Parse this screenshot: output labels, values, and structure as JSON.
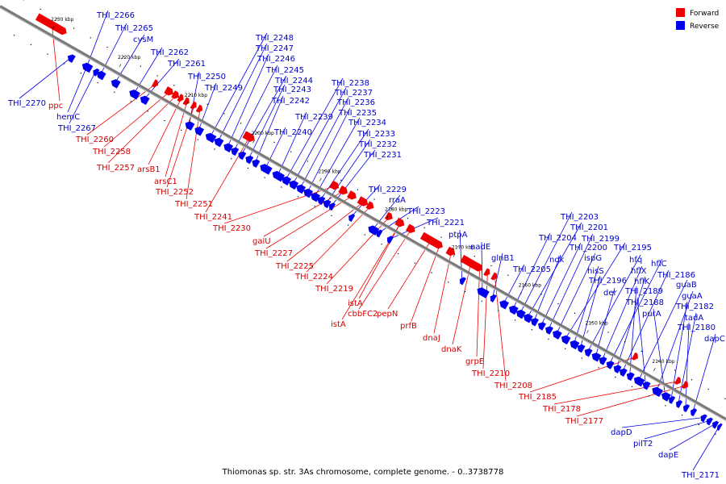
{
  "caption": "Thiomonas sp. str. 3As chromosome, complete genome. - 0..3738778",
  "legend": {
    "forward_label": "Forward",
    "reverse_label": "Reverse",
    "forward_color": "#ee0000",
    "reverse_color": "#0000ee"
  },
  "axis": {
    "ticks": [
      "2230 kbp",
      "2220 kbp",
      "2210 kbp",
      "2200 kbp",
      "2190 kbp",
      "2180 kbp",
      "2170 kbp",
      "2160 kbp",
      "2150 kbp",
      "2140 kbp"
    ]
  },
  "genes": [
    {
      "name": "THI_2266",
      "strand": "reverse"
    },
    {
      "name": "THI_2265",
      "strand": "reverse"
    },
    {
      "name": "cysM",
      "strand": "reverse"
    },
    {
      "name": "THI_2262",
      "strand": "reverse"
    },
    {
      "name": "THI_2261",
      "strand": "reverse"
    },
    {
      "name": "THI_2250",
      "strand": "reverse"
    },
    {
      "name": "THI_2249",
      "strand": "reverse"
    },
    {
      "name": "THI_2248",
      "strand": "reverse"
    },
    {
      "name": "THI_2247",
      "strand": "reverse"
    },
    {
      "name": "THI_2246",
      "strand": "reverse"
    },
    {
      "name": "THI_2245",
      "strand": "reverse"
    },
    {
      "name": "THI_2244",
      "strand": "reverse"
    },
    {
      "name": "THI_2243",
      "strand": "reverse"
    },
    {
      "name": "THI_2242",
      "strand": "reverse"
    },
    {
      "name": "THI_2238",
      "strand": "reverse"
    },
    {
      "name": "THI_2237",
      "strand": "reverse"
    },
    {
      "name": "THI_2236",
      "strand": "reverse"
    },
    {
      "name": "THI_2235",
      "strand": "reverse"
    },
    {
      "name": "THI_2239",
      "strand": "reverse"
    },
    {
      "name": "THI_2234",
      "strand": "reverse"
    },
    {
      "name": "THI_2240",
      "strand": "reverse"
    },
    {
      "name": "THI_2233",
      "strand": "reverse"
    },
    {
      "name": "THI_2232",
      "strand": "reverse"
    },
    {
      "name": "THI_2231",
      "strand": "reverse"
    },
    {
      "name": "THI_2229",
      "strand": "reverse"
    },
    {
      "name": "rraA",
      "strand": "reverse"
    },
    {
      "name": "THI_2223",
      "strand": "reverse"
    },
    {
      "name": "THI_2221",
      "strand": "reverse"
    },
    {
      "name": "ptpA",
      "strand": "reverse"
    },
    {
      "name": "nadE",
      "strand": "reverse"
    },
    {
      "name": "glnB1",
      "strand": "reverse"
    },
    {
      "name": "THI_2205",
      "strand": "reverse"
    },
    {
      "name": "THI_2204",
      "strand": "reverse"
    },
    {
      "name": "THI_2203",
      "strand": "reverse"
    },
    {
      "name": "THI_2201",
      "strand": "reverse"
    },
    {
      "name": "ndk",
      "strand": "reverse"
    },
    {
      "name": "THI_2200",
      "strand": "reverse"
    },
    {
      "name": "THI_2199",
      "strand": "reverse"
    },
    {
      "name": "ispG",
      "strand": "reverse"
    },
    {
      "name": "THI_2195",
      "strand": "reverse"
    },
    {
      "name": "hisS",
      "strand": "reverse"
    },
    {
      "name": "THI_2196",
      "strand": "reverse"
    },
    {
      "name": "hfq",
      "strand": "reverse"
    },
    {
      "name": "der",
      "strand": "reverse"
    },
    {
      "name": "hflX",
      "strand": "reverse"
    },
    {
      "name": "hflC",
      "strand": "reverse"
    },
    {
      "name": "hflK",
      "strand": "reverse"
    },
    {
      "name": "THI_2186",
      "strand": "reverse"
    },
    {
      "name": "THI_2189",
      "strand": "reverse"
    },
    {
      "name": "guaB",
      "strand": "reverse"
    },
    {
      "name": "THI_2188",
      "strand": "reverse"
    },
    {
      "name": "guaA",
      "strand": "reverse"
    },
    {
      "name": "purA",
      "strand": "reverse"
    },
    {
      "name": "THI_2182",
      "strand": "reverse"
    },
    {
      "name": "tadA",
      "strand": "reverse"
    },
    {
      "name": "THI_2180",
      "strand": "reverse"
    },
    {
      "name": "dapC",
      "strand": "reverse"
    },
    {
      "name": "THI_2270",
      "strand": "reverse"
    },
    {
      "name": "hemC",
      "strand": "reverse"
    },
    {
      "name": "THI_2267",
      "strand": "reverse"
    },
    {
      "name": "dapD",
      "strand": "reverse"
    },
    {
      "name": "pilT2",
      "strand": "reverse"
    },
    {
      "name": "dapE",
      "strand": "reverse"
    },
    {
      "name": "THI_2171",
      "strand": "reverse"
    },
    {
      "name": "ppc",
      "strand": "forward"
    },
    {
      "name": "THI_2260",
      "strand": "forward"
    },
    {
      "name": "THI_2258",
      "strand": "forward"
    },
    {
      "name": "THI_2257",
      "strand": "forward"
    },
    {
      "name": "arsB1",
      "strand": "forward"
    },
    {
      "name": "arsC1",
      "strand": "forward"
    },
    {
      "name": "THI_2252",
      "strand": "forward"
    },
    {
      "name": "THI_2251",
      "strand": "forward"
    },
    {
      "name": "THI_2241",
      "strand": "forward"
    },
    {
      "name": "THI_2230",
      "strand": "forward"
    },
    {
      "name": "galU",
      "strand": "forward"
    },
    {
      "name": "THI_2227",
      "strand": "forward"
    },
    {
      "name": "THI_2225",
      "strand": "forward"
    },
    {
      "name": "THI_2224",
      "strand": "forward"
    },
    {
      "name": "THI_2219",
      "strand": "forward"
    },
    {
      "name": "istA",
      "strand": "forward"
    },
    {
      "name": "cbbFC2",
      "strand": "forward"
    },
    {
      "name": "pepN",
      "strand": "forward"
    },
    {
      "name": "istA",
      "strand": "forward"
    },
    {
      "name": "prfB",
      "strand": "forward"
    },
    {
      "name": "dnaJ",
      "strand": "forward"
    },
    {
      "name": "dnaK",
      "strand": "forward"
    },
    {
      "name": "grpE",
      "strand": "forward"
    },
    {
      "name": "THI_2210",
      "strand": "forward"
    },
    {
      "name": "THI_2208",
      "strand": "forward"
    },
    {
      "name": "THI_2185",
      "strand": "forward"
    },
    {
      "name": "THI_2178",
      "strand": "forward"
    },
    {
      "name": "THI_2177",
      "strand": "forward"
    }
  ]
}
